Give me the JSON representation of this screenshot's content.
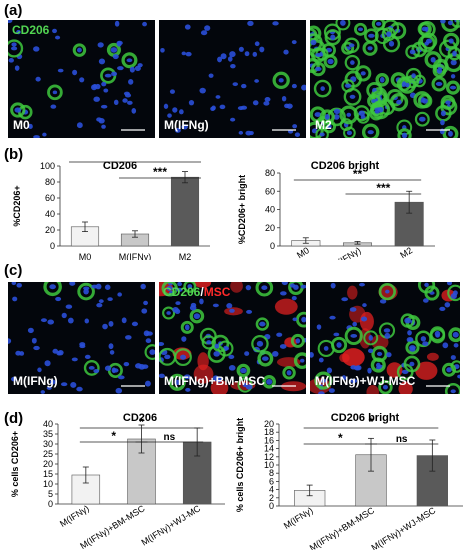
{
  "panel_labels": {
    "a": "(a)",
    "b": "(b)",
    "c": "(c)",
    "d": "(d)"
  },
  "row_a": {
    "stain_label": "CD206",
    "images": [
      {
        "label": "M0",
        "density": 0.35,
        "green_level": 0.12
      },
      {
        "label": "M(IFNg)",
        "density": 0.35,
        "green_level": 0.05
      },
      {
        "label": "M2",
        "density": 0.9,
        "green_level": 0.9
      }
    ]
  },
  "row_c": {
    "stain_label_green": "CD206",
    "stain_label_sep": "/",
    "stain_label_red": "MSC",
    "images": [
      {
        "label": "M(IFNg)",
        "density": 0.55,
        "green_level": 0.1,
        "red_level": 0.0
      },
      {
        "label": "M(IFNg)+BM-MSC",
        "density": 0.55,
        "green_level": 0.35,
        "red_level": 0.6
      },
      {
        "label": "M(IFNg)+WJ-MSC",
        "density": 0.55,
        "green_level": 0.35,
        "red_level": 0.7
      }
    ]
  },
  "colors": {
    "green": "#3ec83e",
    "red": "#e02020",
    "blue": "#2a4fd8",
    "bar_light": "#f2f2f2",
    "bar_mid": "#c8c8c8",
    "bar_dark": "#5a5a5a"
  },
  "chart_data": [
    {
      "type": "bar",
      "title": "CD206",
      "ylabel": "%CD206+",
      "categories": [
        "M0",
        "M(IFNγ)",
        "M2"
      ],
      "values": [
        24,
        15,
        86
      ],
      "errors": [
        6,
        4,
        7
      ],
      "ylim": [
        0,
        100
      ],
      "yticks": [
        0,
        20,
        40,
        60,
        80,
        100
      ],
      "significance": [
        {
          "from": 0,
          "to": 2,
          "label": "***"
        },
        {
          "from": 1,
          "to": 2,
          "label": "***"
        }
      ]
    },
    {
      "type": "bar",
      "title": "CD206 bright",
      "ylabel": "%CD206+ bright",
      "categories": [
        "M0",
        "M(IFNγ)",
        "M2"
      ],
      "values": [
        6,
        3.5,
        48
      ],
      "errors": [
        3,
        1.5,
        12
      ],
      "ylim": [
        0,
        80
      ],
      "yticks": [
        0,
        20,
        40,
        60,
        80
      ],
      "significance": [
        {
          "from": 0,
          "to": 2,
          "label": "**"
        },
        {
          "from": 1,
          "to": 2,
          "label": "***"
        }
      ]
    },
    {
      "type": "bar",
      "title": "CD206",
      "ylabel": "% cells CD206+",
      "categories": [
        "M(IFNγ)",
        "M(IFNγ)+BM-MSC",
        "M(IFNγ)+WJ-MC"
      ],
      "values": [
        14.5,
        32.5,
        31
      ],
      "errors": [
        4,
        7,
        7
      ],
      "ylim": [
        0,
        40
      ],
      "yticks": [
        0,
        5,
        10,
        15,
        20,
        25,
        30,
        35,
        40
      ],
      "significance": [
        {
          "from": 0,
          "to": 2,
          "label": "*"
        },
        {
          "from": 0,
          "to": 1,
          "label": "*"
        },
        {
          "from": 1,
          "to": 2,
          "label": "ns"
        }
      ]
    },
    {
      "type": "bar",
      "title": "CD206 bright",
      "ylabel": "% cells CD206+ bright",
      "categories": [
        "M(IFNγ)",
        "M(IFNγ)+BM-MSC",
        "M(IFNγ)+WJ-MSC"
      ],
      "values": [
        3.8,
        12.5,
        12.3
      ],
      "errors": [
        1.3,
        4,
        3.8
      ],
      "ylim": [
        0,
        20
      ],
      "yticks": [
        0,
        2,
        4,
        6,
        8,
        10,
        12,
        14,
        16,
        18,
        20
      ],
      "significance": [
        {
          "from": 0,
          "to": 2,
          "label": "*"
        },
        {
          "from": 0,
          "to": 1,
          "label": "*"
        },
        {
          "from": 1,
          "to": 2,
          "label": "ns"
        }
      ]
    }
  ]
}
